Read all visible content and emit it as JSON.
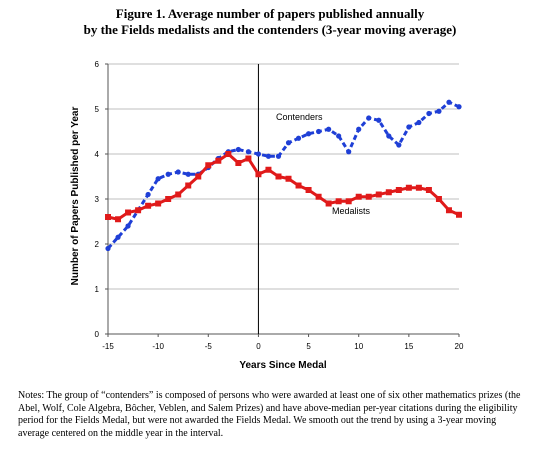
{
  "title_line1": "Figure 1. Average number of papers published annually",
  "title_line2": "by the Fields medalists and the contenders (3-year moving average)",
  "notes": "Notes: The group of “contenders” is composed of persons who were awarded at least one of six other mathematics prizes (the Abel, Wolf, Cole Algebra, Bôcher, Veblen, and Salem Prizes) and have above-median per-year citations during the eligibility period for the Fields Medal, but were not awarded the Fields Medal. We smooth out the trend by using a 3-year moving average centered on the middle year in the interval.",
  "chart_data": {
    "type": "line",
    "xlabel": "Years Since Medal",
    "ylabel": "Number of Papers Published per Year",
    "xlim": [
      -15,
      20
    ],
    "ylim": [
      0,
      6
    ],
    "xticks": [
      "-15",
      "-10",
      "-5",
      "0",
      "5",
      "10",
      "15",
      "20"
    ],
    "yticks": [
      "0",
      "1",
      "2",
      "3",
      "4",
      "5",
      "6"
    ],
    "grid": true,
    "x": [
      -15,
      -14,
      -13,
      -12,
      -11,
      -10,
      -9,
      -8,
      -7,
      -6,
      -5,
      -4,
      -3,
      -2,
      -1,
      0,
      1,
      2,
      3,
      4,
      5,
      6,
      7,
      8,
      9,
      10,
      11,
      12,
      13,
      14,
      15,
      16,
      17,
      18,
      19,
      20
    ],
    "series": [
      {
        "name": "Contenders",
        "color": "#1f3fd6",
        "style": "dashed",
        "values": [
          1.9,
          2.15,
          2.4,
          2.75,
          3.1,
          3.45,
          3.55,
          3.6,
          3.55,
          3.55,
          3.7,
          3.9,
          4.05,
          4.1,
          4.05,
          4.0,
          3.95,
          3.95,
          4.25,
          4.35,
          4.45,
          4.5,
          4.55,
          4.4,
          4.05,
          4.55,
          4.8,
          4.75,
          4.4,
          4.2,
          4.6,
          4.7,
          4.9,
          4.95,
          5.15,
          5.05
        ]
      },
      {
        "name": "Medalists",
        "color": "#e01a1a",
        "style": "solid",
        "values": [
          2.6,
          2.55,
          2.7,
          2.75,
          2.85,
          2.9,
          3.0,
          3.1,
          3.3,
          3.5,
          3.75,
          3.85,
          4.0,
          3.8,
          3.9,
          3.55,
          3.65,
          3.5,
          3.45,
          3.3,
          3.2,
          3.05,
          2.9,
          2.95,
          2.95,
          3.05,
          3.05,
          3.1,
          3.15,
          3.2,
          3.25,
          3.25,
          3.2,
          3.0,
          2.75,
          2.65
        ]
      }
    ]
  }
}
